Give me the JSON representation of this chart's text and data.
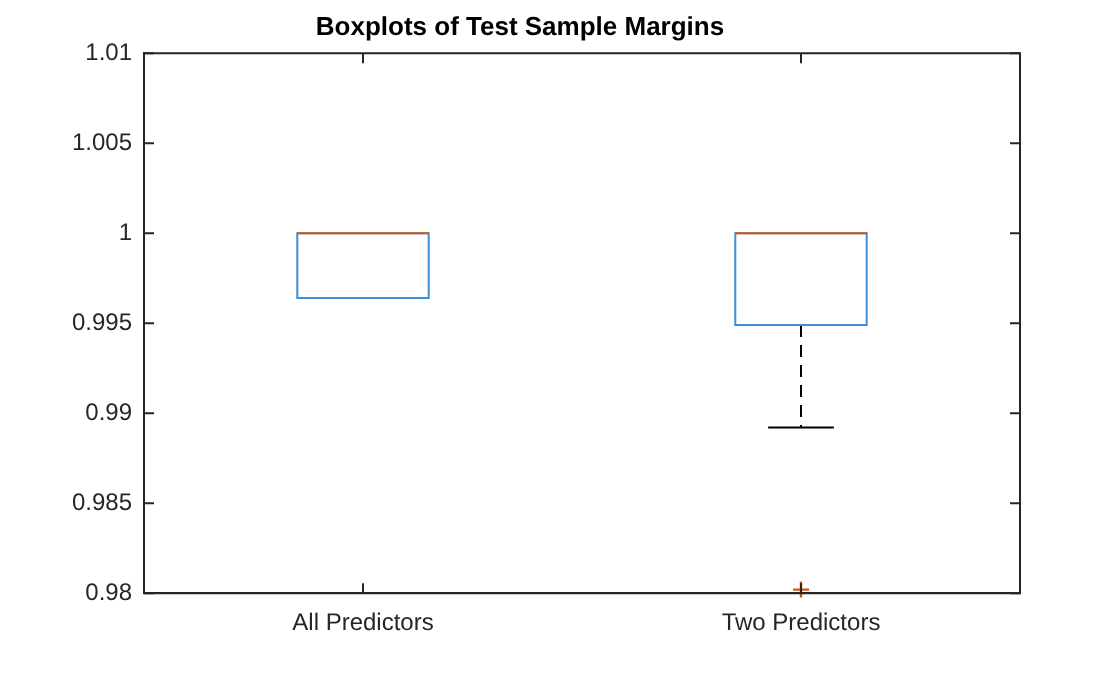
{
  "chart_data": {
    "type": "box",
    "title": "Boxplots of Test Sample Margins",
    "categories": [
      "All Predictors",
      "Two Predictors"
    ],
    "color": "#3d8fd6",
    "boxes": [
      {
        "low": 0.9964,
        "q1": 0.9964,
        "median": 1,
        "q3": 1,
        "high": 1
      },
      {
        "low": 0.9892,
        "q1": 0.9949,
        "median": 1,
        "q3": 1,
        "high": 1,
        "outliers": [
          0.9802
        ]
      }
    ],
    "ylim": [
      0.98,
      1.01
    ],
    "yticks": [
      0.98,
      0.985,
      0.99,
      0.995,
      1,
      1.005,
      1.01
    ],
    "grid": false,
    "legend": false
  }
}
